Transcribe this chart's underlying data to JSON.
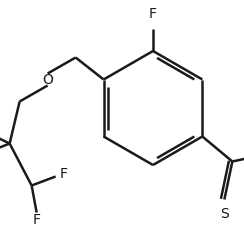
{
  "background_color": "#ffffff",
  "line_color": "#1a1a1a",
  "bond_width": 1.8,
  "figsize": [
    2.44,
    2.49
  ],
  "dpi": 100,
  "xlim": [
    0,
    244
  ],
  "ylim": [
    0,
    249
  ]
}
